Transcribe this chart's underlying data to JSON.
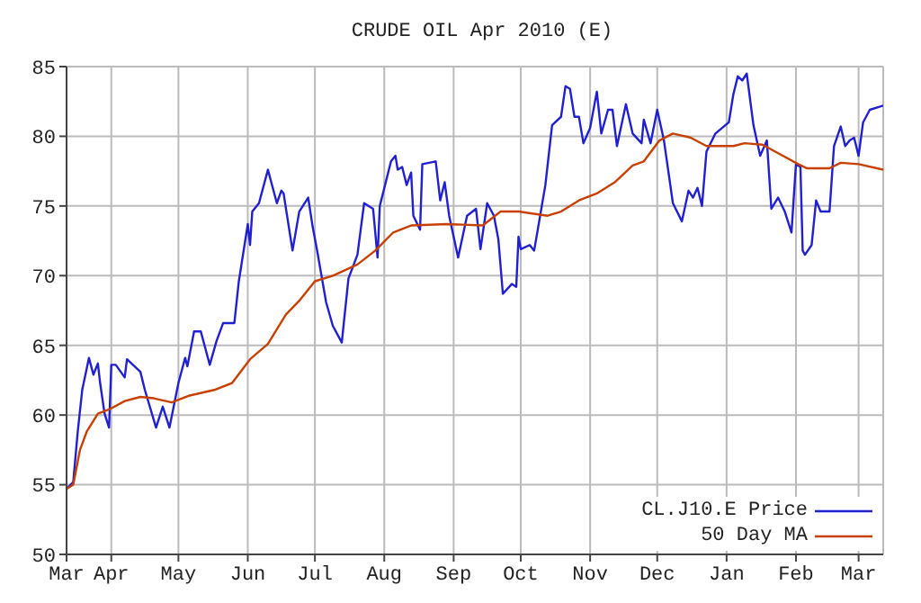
{
  "chart_data": {
    "type": "line",
    "title": "CRUDE OIL Apr 2010 (E)",
    "xlim": [
      "2009-03-12",
      "2010-03-12"
    ],
    "xticks": [
      {
        "value": "2009-03-12",
        "label": "Mar"
      },
      {
        "value": "2009-04-01",
        "label": "Apr"
      },
      {
        "value": "2009-05-01",
        "label": "May"
      },
      {
        "value": "2009-06-01",
        "label": "Jun"
      },
      {
        "value": "2009-07-01",
        "label": "Jul"
      },
      {
        "value": "2009-08-01",
        "label": "Aug"
      },
      {
        "value": "2009-09-01",
        "label": "Sep"
      },
      {
        "value": "2009-10-01",
        "label": "Oct"
      },
      {
        "value": "2009-11-01",
        "label": "Nov"
      },
      {
        "value": "2009-12-01",
        "label": "Dec"
      },
      {
        "value": "2010-01-01",
        "label": "Jan"
      },
      {
        "value": "2010-02-01",
        "label": "Feb"
      },
      {
        "value": "2010-03-01",
        "label": "Mar"
      }
    ],
    "ylim": [
      50,
      85
    ],
    "yticks": [
      50,
      55,
      60,
      65,
      70,
      75,
      80,
      85
    ],
    "grid": true,
    "legend": "bottom right",
    "marker": "none",
    "line_style": "solid",
    "series": [
      {
        "name": "CL.J10.E Price",
        "color": "#2020d0",
        "x": [
          "2009-03-12",
          "2009-03-15",
          "2009-03-17",
          "2009-03-19",
          "2009-03-22",
          "2009-03-24",
          "2009-03-26",
          "2009-03-27",
          "2009-03-29",
          "2009-03-31",
          "2009-04-01",
          "2009-04-03",
          "2009-04-07",
          "2009-04-08",
          "2009-04-14",
          "2009-04-16",
          "2009-04-21",
          "2009-04-24",
          "2009-04-27",
          "2009-05-01",
          "2009-05-04",
          "2009-05-05",
          "2009-05-08",
          "2009-05-11",
          "2009-05-15",
          "2009-05-18",
          "2009-05-21",
          "2009-05-26",
          "2009-05-28",
          "2009-06-01",
          "2009-06-02",
          "2009-06-03",
          "2009-06-06",
          "2009-06-10",
          "2009-06-14",
          "2009-06-16",
          "2009-06-17",
          "2009-06-21",
          "2009-06-24",
          "2009-06-28",
          "2009-06-30",
          "2009-07-02",
          "2009-07-06",
          "2009-07-09",
          "2009-07-13",
          "2009-07-16",
          "2009-07-20",
          "2009-07-23",
          "2009-07-27",
          "2009-07-29",
          "2009-07-30",
          "2009-08-04",
          "2009-08-06",
          "2009-08-07",
          "2009-08-09",
          "2009-08-11",
          "2009-08-13",
          "2009-08-14",
          "2009-08-17",
          "2009-08-18",
          "2009-08-24",
          "2009-08-26",
          "2009-08-28",
          "2009-08-30",
          "2009-09-03",
          "2009-09-07",
          "2009-09-11",
          "2009-09-13",
          "2009-09-16",
          "2009-09-19",
          "2009-09-21",
          "2009-09-23",
          "2009-09-27",
          "2009-09-29",
          "2009-09-30",
          "2009-10-01",
          "2009-10-05",
          "2009-10-07",
          "2009-10-12",
          "2009-10-15",
          "2009-10-19",
          "2009-10-21",
          "2009-10-23",
          "2009-10-25",
          "2009-10-27",
          "2009-10-29",
          "2009-11-01",
          "2009-11-04",
          "2009-11-06",
          "2009-11-09",
          "2009-11-11",
          "2009-11-13",
          "2009-11-17",
          "2009-11-20",
          "2009-11-24",
          "2009-11-25",
          "2009-11-28",
          "2009-12-01",
          "2009-12-04",
          "2009-12-08",
          "2009-12-12",
          "2009-12-15",
          "2009-12-17",
          "2009-12-19",
          "2009-12-21",
          "2009-12-23",
          "2009-12-27",
          "2010-01-02",
          "2010-01-04",
          "2010-01-06",
          "2010-01-08",
          "2010-01-10",
          "2010-01-13",
          "2010-01-16",
          "2010-01-19",
          "2010-01-21",
          "2010-01-24",
          "2010-01-27",
          "2010-01-30",
          "2010-02-01",
          "2010-02-03",
          "2010-02-04",
          "2010-02-05",
          "2010-02-08",
          "2010-02-10",
          "2010-02-12",
          "2010-02-16",
          "2010-02-18",
          "2010-02-21",
          "2010-02-23",
          "2010-02-25",
          "2010-02-27",
          "2010-03-01",
          "2010-03-03",
          "2010-03-06",
          "2010-03-12"
        ],
        "values": [
          54.7,
          55.2,
          58.8,
          61.8,
          64.1,
          62.9,
          63.7,
          62.3,
          60.1,
          59.1,
          63.6,
          63.6,
          62.7,
          64.0,
          63.1,
          61.8,
          59.1,
          60.6,
          59.1,
          62.3,
          64.1,
          63.5,
          66.0,
          66.0,
          63.6,
          65.3,
          66.6,
          66.6,
          69.6,
          73.7,
          72.2,
          74.6,
          75.2,
          77.6,
          75.2,
          76.1,
          75.9,
          71.8,
          74.6,
          75.6,
          73.5,
          71.8,
          68.1,
          66.4,
          65.2,
          69.8,
          71.5,
          75.2,
          74.8,
          71.3,
          75.0,
          78.2,
          78.6,
          77.6,
          77.8,
          76.5,
          77.4,
          74.3,
          73.3,
          78.0,
          78.2,
          75.4,
          76.7,
          74.3,
          71.3,
          74.3,
          74.8,
          71.9,
          75.2,
          74.3,
          72.6,
          68.7,
          69.4,
          69.2,
          72.8,
          71.9,
          72.2,
          71.8,
          76.5,
          80.8,
          81.4,
          83.6,
          83.4,
          81.4,
          81.4,
          79.5,
          80.6,
          83.2,
          80.2,
          81.9,
          81.9,
          79.3,
          82.3,
          80.2,
          79.5,
          81.2,
          79.5,
          81.9,
          79.7,
          75.2,
          73.9,
          76.1,
          75.6,
          76.3,
          75.0,
          78.9,
          80.2,
          81.0,
          83.0,
          84.3,
          84.0,
          84.5,
          80.8,
          78.6,
          79.7,
          74.8,
          75.6,
          74.6,
          73.1,
          78.0,
          77.8,
          71.8,
          71.5,
          72.2,
          75.4,
          74.6,
          74.6,
          79.3,
          80.7,
          79.3,
          79.7,
          79.9,
          78.6,
          81.0,
          81.9,
          82.2
        ]
      },
      {
        "name": "50 Day MA",
        "color": "#c84000",
        "x": [
          "2009-03-12",
          "2009-03-15",
          "2009-03-18",
          "2009-03-21",
          "2009-03-26",
          "2009-03-31",
          "2009-04-07",
          "2009-04-14",
          "2009-04-20",
          "2009-04-28",
          "2009-05-06",
          "2009-05-17",
          "2009-05-25",
          "2009-06-02",
          "2009-06-10",
          "2009-06-18",
          "2009-06-24",
          "2009-07-01",
          "2009-07-09",
          "2009-07-20",
          "2009-07-28",
          "2009-08-05",
          "2009-08-13",
          "2009-08-29",
          "2009-09-14",
          "2009-09-22",
          "2009-09-30",
          "2009-10-13",
          "2009-10-19",
          "2009-10-27",
          "2009-11-04",
          "2009-11-12",
          "2009-11-20",
          "2009-11-25",
          "2009-12-02",
          "2009-12-08",
          "2009-12-16",
          "2009-12-23",
          "2010-01-04",
          "2010-01-09",
          "2010-01-17",
          "2010-01-25",
          "2010-02-02",
          "2010-02-06",
          "2010-02-16",
          "2010-02-21",
          "2010-03-01",
          "2010-03-12"
        ],
        "values": [
          54.7,
          55.0,
          57.5,
          58.8,
          60.1,
          60.4,
          61.0,
          61.3,
          61.2,
          60.9,
          61.4,
          61.8,
          62.3,
          64.0,
          65.1,
          67.2,
          68.2,
          69.6,
          70.0,
          70.8,
          71.8,
          73.1,
          73.6,
          73.7,
          73.6,
          74.6,
          74.6,
          74.3,
          74.6,
          75.4,
          75.9,
          76.7,
          77.9,
          78.2,
          79.7,
          80.2,
          79.9,
          79.3,
          79.3,
          79.5,
          79.4,
          78.7,
          78.0,
          77.7,
          77.7,
          78.1,
          78.0,
          77.6
        ]
      }
    ]
  }
}
